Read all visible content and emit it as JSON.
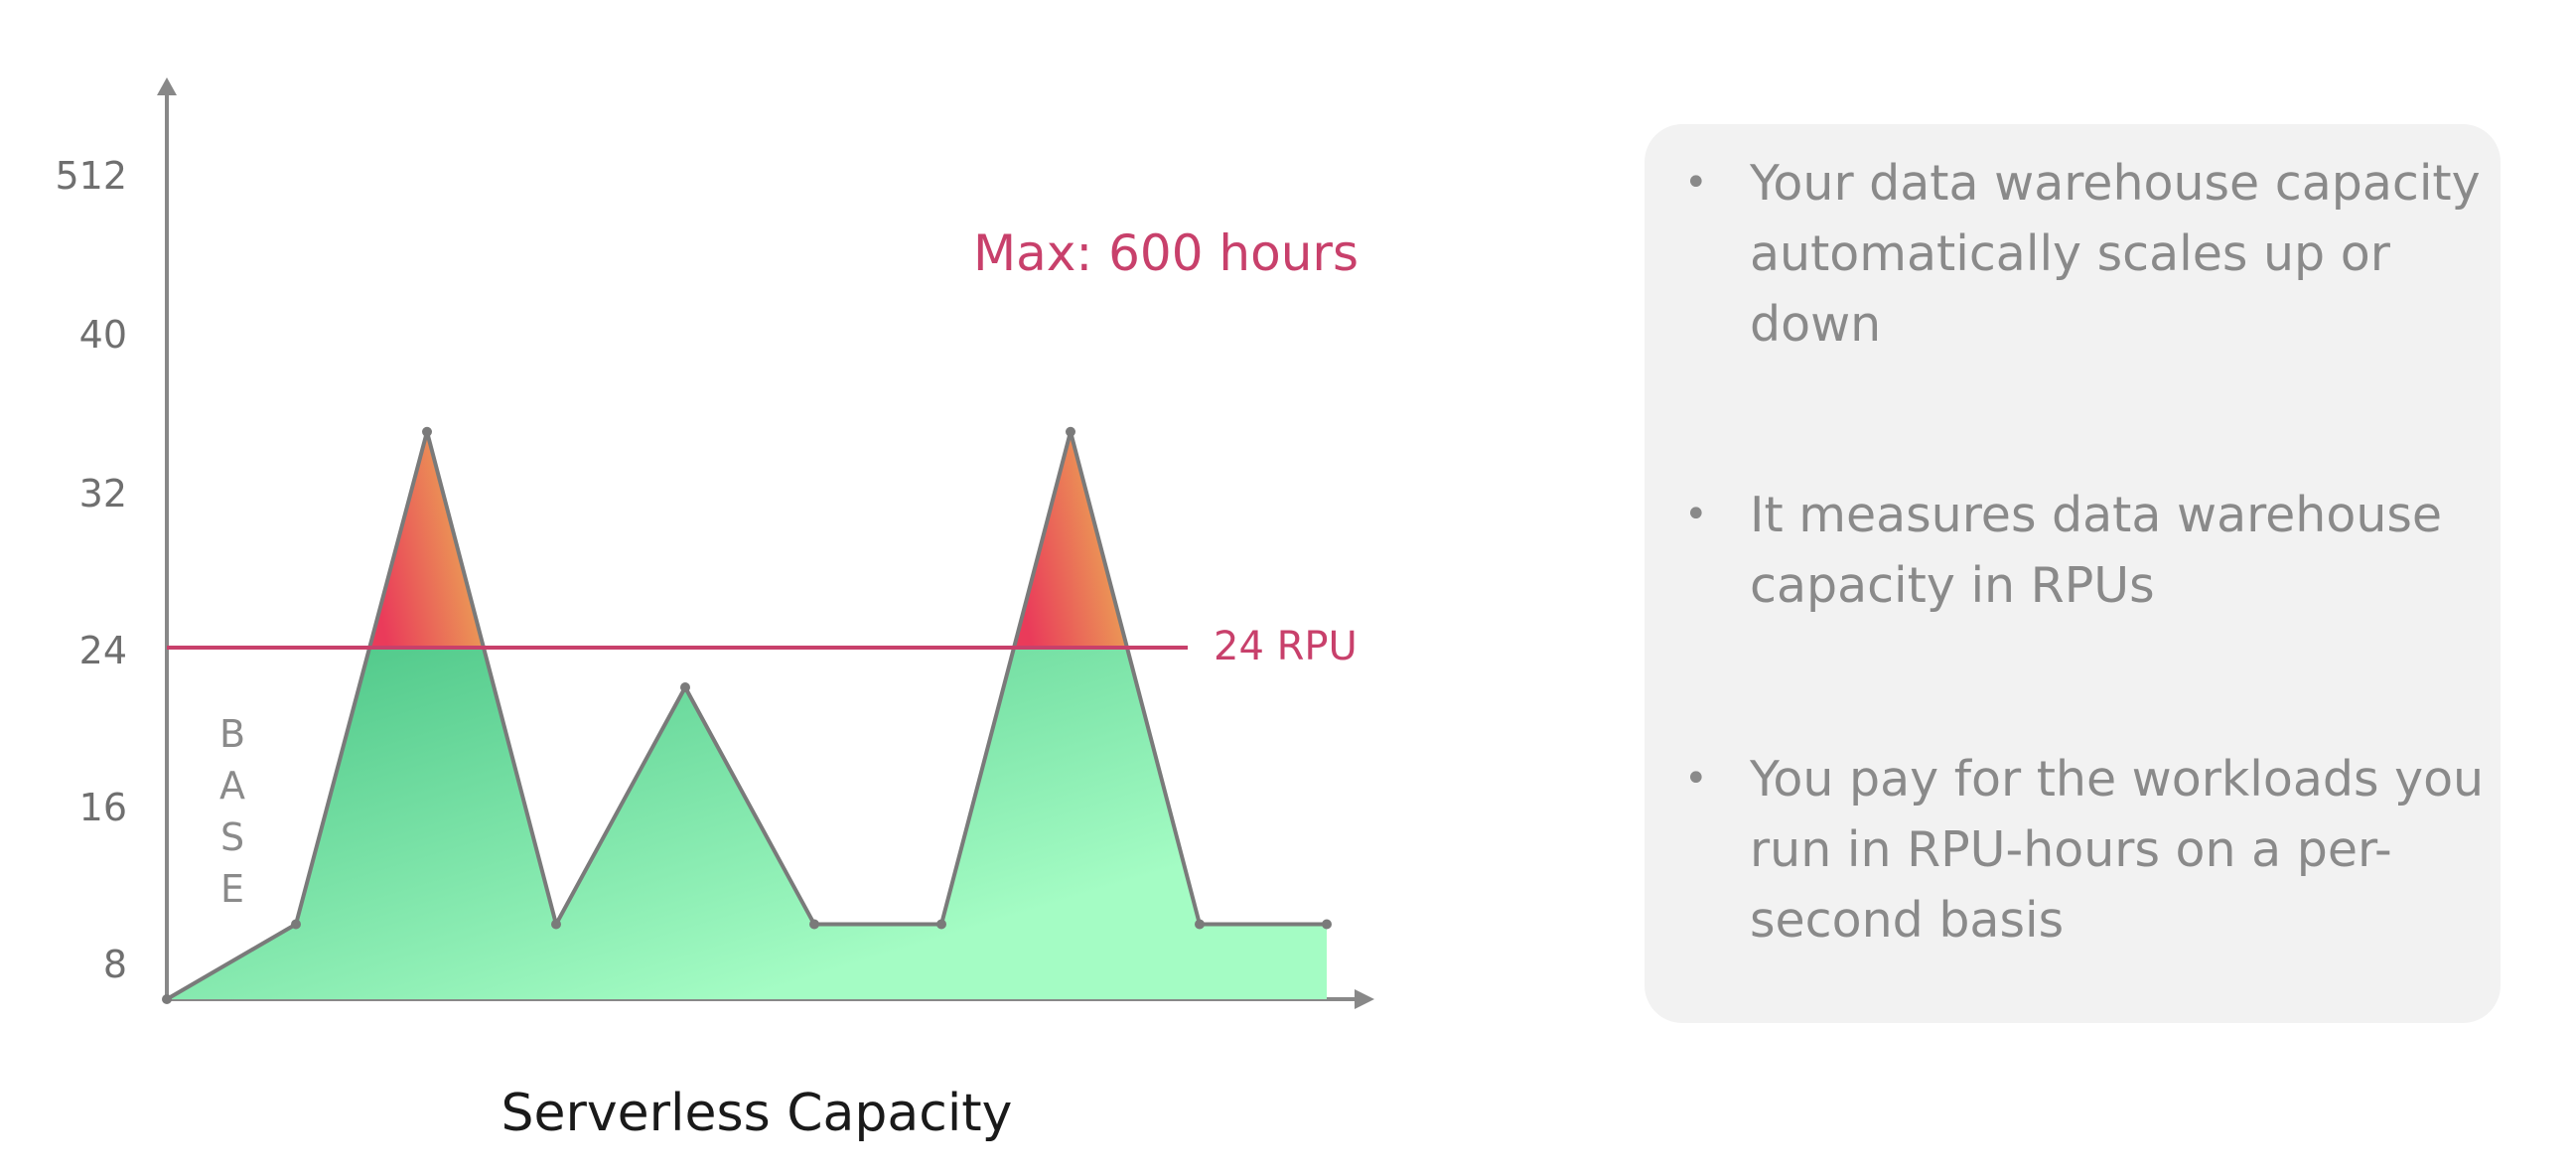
{
  "chart_data": {
    "type": "area",
    "title": "Serverless Capacity",
    "y_ticks": [
      "512",
      "40",
      "32",
      "24",
      "16",
      "8"
    ],
    "x": [
      0,
      1,
      2,
      3,
      4,
      5,
      6,
      7,
      8,
      9
    ],
    "series": [
      {
        "values": [
          5,
          10,
          35,
          10,
          22,
          10,
          10,
          35,
          10,
          10
        ]
      }
    ],
    "threshold": {
      "value": 24,
      "label": "24 RPU",
      "color": "#c8406b"
    },
    "max_annotation": "Max: 600 hours",
    "base_label": [
      "B",
      "A",
      "S",
      "E"
    ],
    "grid": false,
    "colors": {
      "area_dark": "#49c485",
      "area_light": "#a4fcc4",
      "peak_red": "#ea3b5a",
      "peak_orange": "#eba555",
      "axis": "#888888",
      "line": "#7a7a7a"
    }
  },
  "info_panel": {
    "items": [
      "Your data warehouse capacity automatically scales up or down",
      "It measures data warehouse capacity in RPUs",
      "You pay for the workloads you run in RPU-hours on a per-second basis"
    ]
  }
}
